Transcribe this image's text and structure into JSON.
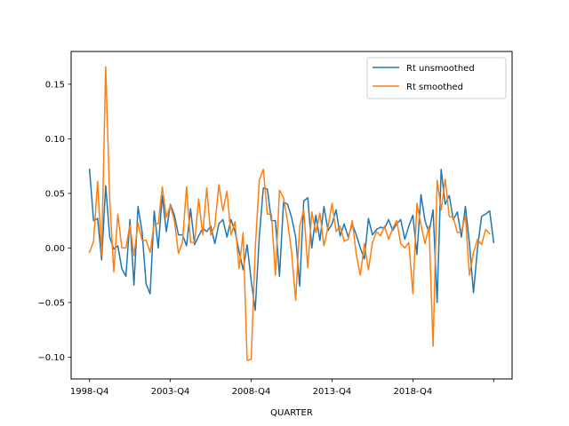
{
  "chart_data": {
    "type": "line",
    "xlabel": "QUARTER",
    "ylabel": "",
    "title": "",
    "ylim": [
      -0.12,
      0.18
    ],
    "x_start_label": "1998-Q4",
    "x_tick_labels": [
      "1998-Q4",
      "2003-Q4",
      "2008-Q4",
      "2013-Q4",
      "2018-Q4",
      ""
    ],
    "x_tick_index": [
      0,
      20,
      40,
      60,
      80,
      100
    ],
    "y_ticks": [
      -0.1,
      -0.05,
      0.0,
      0.05,
      0.1,
      0.15
    ],
    "y_tick_labels": [
      "−0.10",
      "−0.05",
      "0.00",
      "0.05",
      "0.10",
      "0.15"
    ],
    "legend_position": "top-right",
    "grid": false,
    "series": [
      {
        "name": "Rt unsmoothed",
        "color": "#1f77b4",
        "values": [
          0.072,
          0.025,
          0.027,
          -0.011,
          0.057,
          0.01,
          -0.001,
          0.002,
          -0.019,
          -0.026,
          0.026,
          -0.034,
          0.038,
          0.015,
          -0.033,
          -0.042,
          0.034,
          0.0,
          0.048,
          0.015,
          0.04,
          0.03,
          0.012,
          0.012,
          0.002,
          0.036,
          0.003,
          0.011,
          0.018,
          0.015,
          0.02,
          0.004,
          0.022,
          0.026,
          0.01,
          0.026,
          0.015,
          -0.003,
          -0.02,
          0.003,
          -0.03,
          -0.057,
          0.01,
          0.055,
          0.054,
          0.025,
          0.025,
          -0.026,
          0.042,
          0.04,
          0.028,
          0.01,
          -0.035,
          0.043,
          0.046,
          0.0,
          0.03,
          0.007,
          0.038,
          0.016,
          0.022,
          0.035,
          0.011,
          0.022,
          0.01,
          0.022,
          0.012,
          0.0,
          -0.01,
          0.027,
          0.012,
          0.017,
          0.019,
          0.018,
          0.026,
          0.016,
          0.022,
          0.026,
          0.008,
          0.02,
          0.03,
          -0.006,
          0.049,
          0.025,
          0.014,
          0.035,
          -0.05,
          0.072,
          0.04,
          0.048,
          0.026,
          0.033,
          0.01,
          0.038,
          0.004,
          -0.041,
          0.0,
          0.029,
          0.031,
          0.034,
          0.005
        ]
      },
      {
        "name": "Rt smoothed",
        "color": "#ff7f0e",
        "values": [
          -0.004,
          0.006,
          0.061,
          -0.007,
          0.166,
          0.045,
          -0.022,
          0.031,
          0.0,
          0.0,
          0.021,
          -0.007,
          0.023,
          0.007,
          0.007,
          -0.004,
          0.023,
          0.022,
          0.056,
          0.028,
          0.039,
          0.025,
          -0.005,
          0.005,
          0.056,
          0.005,
          0.005,
          0.045,
          0.012,
          0.055,
          0.012,
          0.02,
          0.058,
          0.034,
          0.052,
          0.012,
          0.024,
          -0.019,
          0.014,
          -0.103,
          -0.102,
          -0.001,
          0.062,
          0.072,
          0.031,
          0.031,
          -0.025,
          0.053,
          0.046,
          0.024,
          -0.004,
          -0.048,
          0.02,
          0.035,
          -0.018,
          0.033,
          0.014,
          0.032,
          0.002,
          0.019,
          0.041,
          0.015,
          0.02,
          0.006,
          0.008,
          0.025,
          -0.006,
          -0.025,
          0.004,
          -0.02,
          0.005,
          0.015,
          0.011,
          0.02,
          0.008,
          0.018,
          0.025,
          0.004,
          0.0,
          0.005,
          -0.042,
          0.041,
          0.021,
          0.004,
          0.02,
          -0.09,
          0.062,
          0.035,
          0.063,
          0.029,
          0.028,
          0.014,
          0.015,
          0.03,
          -0.025,
          -0.004,
          0.008,
          0.003,
          0.017,
          0.013
        ]
      }
    ]
  }
}
